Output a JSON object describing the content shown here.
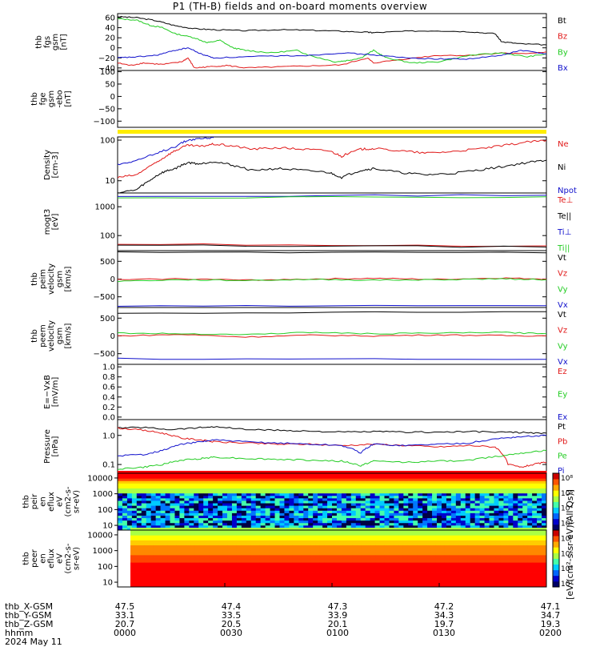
{
  "title": "P1 (TH-B) fields and on-board moments overview",
  "colors": {
    "black": "#000000",
    "red": "#e11919",
    "green": "#22cc22",
    "blue": "#1111cc",
    "yellow": "#ffee00"
  },
  "chart_data": [
    {
      "type": "line",
      "id": "fgs_gsm",
      "ylabel": [
        "thb",
        "fgs",
        "gsm",
        "[nT]"
      ],
      "yticks": [
        "60",
        "40",
        "20",
        "0",
        "−20",
        "−40"
      ],
      "ylim": [
        -45,
        68
      ],
      "legend": [
        {
          "name": "Bt",
          "color": "black"
        },
        {
          "name": "Bz",
          "color": "red"
        },
        {
          "name": "By",
          "color": "green"
        },
        {
          "name": "Bx",
          "color": "blue"
        }
      ],
      "series": [
        {
          "name": "Bt",
          "color": "black",
          "x": [
            0,
            6,
            12,
            18,
            24,
            30,
            40,
            50,
            60,
            70,
            78,
            80,
            90,
            100,
            110,
            118,
            120,
            126,
            134
          ],
          "y": [
            62,
            60,
            54,
            44,
            38,
            36,
            34,
            36,
            35,
            33,
            31,
            30,
            33,
            34,
            32,
            28,
            12,
            8,
            6
          ]
        },
        {
          "name": "Bz",
          "color": "red",
          "x": [
            0,
            4,
            8,
            14,
            20,
            22,
            24,
            28,
            34,
            40,
            50,
            60,
            70,
            78,
            80,
            90,
            100,
            110,
            120,
            126,
            134
          ],
          "y": [
            -30,
            -35,
            -30,
            -33,
            -28,
            -20,
            -40,
            -38,
            -35,
            -40,
            -38,
            -36,
            -34,
            -20,
            -30,
            -22,
            -15,
            -15,
            -10,
            -12,
            -8
          ]
        },
        {
          "name": "By",
          "color": "green",
          "x": [
            0,
            6,
            10,
            14,
            18,
            24,
            28,
            32,
            36,
            40,
            48,
            56,
            60,
            68,
            72,
            76,
            80,
            84,
            92,
            100,
            110,
            120,
            128,
            134
          ],
          "y": [
            58,
            55,
            45,
            40,
            28,
            20,
            10,
            15,
            0,
            -5,
            -10,
            -5,
            -15,
            -28,
            -25,
            -20,
            -5,
            -20,
            -30,
            -28,
            -15,
            -10,
            -18,
            -12
          ]
        },
        {
          "name": "Bx",
          "color": "blue",
          "x": [
            0,
            6,
            12,
            18,
            22,
            26,
            30,
            40,
            50,
            60,
            70,
            80,
            90,
            100,
            110,
            120,
            126,
            134
          ],
          "y": [
            -20,
            -18,
            -15,
            -5,
            0,
            -12,
            -20,
            -18,
            -16,
            -15,
            -10,
            -14,
            -20,
            -22,
            -22,
            -15,
            -5,
            -12
          ]
        }
      ]
    },
    {
      "type": "line",
      "id": "fgs_gsm_ebo",
      "ylabel": [
        "thb",
        "fge",
        "gsm",
        "-ebo",
        "[nT]"
      ],
      "yticks": [
        "100",
        "50",
        "0",
        "−50",
        "−100"
      ],
      "ylim": [
        -125,
        105
      ],
      "series": []
    },
    {
      "type": "flag_bar",
      "id": "mode_bar",
      "color": "yellow"
    },
    {
      "type": "line",
      "id": "density",
      "ylabel": [
        "Density",
        "[cm-3]"
      ],
      "scale": "log",
      "yticks": [
        "100",
        "10"
      ],
      "ylim": [
        5,
        120
      ],
      "legend": [
        {
          "name": "Ne",
          "color": "red"
        },
        {
          "name": "Ni",
          "color": "black"
        },
        {
          "name": "Npot",
          "color": "blue"
        }
      ],
      "series": [
        {
          "name": "Ne",
          "color": "red",
          "x": [
            0,
            6,
            10,
            14,
            18,
            22,
            26,
            30,
            36,
            42,
            50,
            58,
            66,
            70,
            76,
            80,
            88,
            96,
            104,
            112,
            120,
            128,
            134
          ],
          "y": [
            12,
            14,
            22,
            35,
            55,
            75,
            70,
            80,
            72,
            60,
            65,
            60,
            55,
            40,
            60,
            62,
            55,
            48,
            52,
            60,
            72,
            90,
            98
          ]
        },
        {
          "name": "Ni",
          "color": "black",
          "x": [
            0,
            6,
            10,
            14,
            18,
            22,
            26,
            30,
            36,
            42,
            50,
            58,
            66,
            70,
            76,
            80,
            88,
            96,
            104,
            112,
            120,
            128,
            134
          ],
          "y": [
            5,
            6,
            10,
            16,
            20,
            28,
            26,
            30,
            24,
            18,
            20,
            18,
            16,
            12,
            18,
            20,
            16,
            14,
            15,
            18,
            22,
            28,
            32
          ]
        },
        {
          "name": "Npot",
          "color": "blue",
          "x": [
            0,
            6,
            12,
            18,
            22,
            26,
            30
          ],
          "y": [
            25,
            32,
            45,
            70,
            100,
            110,
            115
          ]
        }
      ]
    },
    {
      "type": "line",
      "id": "temperature",
      "ylabel": [
        "mogt3",
        "[eV]"
      ],
      "scale": "log",
      "yticks": [
        "1000",
        "100"
      ],
      "ylim": [
        30,
        3000
      ],
      "legend": [
        {
          "name": "Te⊥",
          "color": "red"
        },
        {
          "name": "Te||",
          "color": "black"
        },
        {
          "name": "Ti⊥",
          "color": "blue"
        },
        {
          "name": "Ti||",
          "color": "green"
        }
      ],
      "series": [
        {
          "name": "Ti⊥",
          "color": "blue",
          "x": [
            0,
            134
          ],
          "y": [
            2400,
            2500
          ]
        },
        {
          "name": "Ti||",
          "color": "green",
          "x": [
            0,
            134
          ],
          "y": [
            2100,
            2200
          ]
        },
        {
          "name": "Te⊥",
          "color": "red",
          "x": [
            0,
            134
          ],
          "y": [
            50,
            44
          ]
        },
        {
          "name": "Te||",
          "color": "black",
          "x": [
            0,
            134
          ],
          "y": [
            46,
            40
          ]
        }
      ]
    },
    {
      "type": "line",
      "id": "peim_velocity",
      "ylabel": [
        "thb",
        "peim",
        "velocity",
        "gsm",
        "[km/s]"
      ],
      "yticks": [
        "500",
        "0",
        "−500"
      ],
      "ylim": [
        -800,
        800
      ],
      "legend": [
        {
          "name": "Vt",
          "color": "black"
        },
        {
          "name": "Vz",
          "color": "red"
        },
        {
          "name": "Vy",
          "color": "green"
        },
        {
          "name": "Vx",
          "color": "blue"
        }
      ],
      "series": [
        {
          "name": "Vt",
          "color": "black",
          "x": [
            0,
            134
          ],
          "y": [
            760,
            740
          ]
        },
        {
          "name": "Vz",
          "color": "red",
          "x": [
            0,
            20,
            40,
            60,
            80,
            100,
            120,
            134
          ],
          "y": [
            -20,
            10,
            -30,
            0,
            20,
            -10,
            30,
            0
          ]
        },
        {
          "name": "Vy",
          "color": "green",
          "x": [
            0,
            20,
            40,
            60,
            80,
            100,
            120,
            134
          ],
          "y": [
            -60,
            -20,
            -40,
            -10,
            -30,
            -20,
            10,
            -20
          ]
        },
        {
          "name": "Vx",
          "color": "blue",
          "x": [
            0,
            134
          ],
          "y": [
            -760,
            -750
          ]
        }
      ]
    },
    {
      "type": "line",
      "id": "peem_velocity",
      "ylabel": [
        "thb",
        "peem",
        "velocity",
        "gsm",
        "[km/s]"
      ],
      "yticks": [
        "500",
        "0",
        "−500"
      ],
      "ylim": [
        -800,
        800
      ],
      "legend": [
        {
          "name": "Vt",
          "color": "black"
        },
        {
          "name": "Vz",
          "color": "red"
        },
        {
          "name": "Vy",
          "color": "green"
        },
        {
          "name": "Vx",
          "color": "blue"
        }
      ],
      "series": [
        {
          "name": "Vt",
          "color": "black",
          "x": [
            0,
            134
          ],
          "y": [
            640,
            680
          ]
        },
        {
          "name": "Vz",
          "color": "red",
          "x": [
            0,
            20,
            40,
            60,
            80,
            100,
            120,
            134
          ],
          "y": [
            0,
            40,
            -30,
            20,
            0,
            30,
            10,
            0
          ]
        },
        {
          "name": "Vy",
          "color": "green",
          "x": [
            0,
            20,
            40,
            60,
            80,
            100,
            120,
            134
          ],
          "y": [
            80,
            60,
            40,
            100,
            60,
            80,
            100,
            60
          ]
        },
        {
          "name": "Vx",
          "color": "blue",
          "x": [
            0,
            134
          ],
          "y": [
            -640,
            -660
          ]
        }
      ]
    },
    {
      "type": "line",
      "id": "efield",
      "ylabel": [
        "E=−VxB",
        "[mV/m]"
      ],
      "yticks": [
        "1.0",
        "0.8",
        "0.6",
        "0.4",
        "0.2",
        "0.0"
      ],
      "ylim": [
        -0.05,
        1.05
      ],
      "legend": [
        {
          "name": "Ez",
          "color": "red"
        },
        {
          "name": "Ey",
          "color": "green"
        },
        {
          "name": "Ex",
          "color": "blue"
        }
      ],
      "series": []
    },
    {
      "type": "line",
      "id": "pressure",
      "ylabel": [
        "Pressure",
        "[nPa]"
      ],
      "scale": "log",
      "yticks": [
        "1.0",
        "0.1"
      ],
      "ylim": [
        0.05,
        3.5
      ],
      "legend": [
        {
          "name": "Pt",
          "color": "black"
        },
        {
          "name": "Pb",
          "color": "red"
        },
        {
          "name": "Pe",
          "color": "green"
        },
        {
          "name": "Pi",
          "color": "blue"
        }
      ],
      "series": [
        {
          "name": "Pt",
          "color": "black",
          "x": [
            0,
            8,
            16,
            24,
            30,
            40,
            50,
            60,
            70,
            80,
            90,
            100,
            110,
            120,
            126,
            134
          ],
          "y": [
            1.8,
            1.9,
            1.6,
            1.8,
            2.0,
            1.6,
            1.5,
            1.4,
            1.3,
            1.35,
            1.3,
            1.3,
            1.35,
            1.3,
            1.25,
            1.2
          ]
        },
        {
          "name": "Pb",
          "color": "red",
          "x": [
            0,
            8,
            14,
            20,
            26,
            30,
            40,
            50,
            60,
            70,
            80,
            90,
            100,
            110,
            118,
            122,
            126,
            130,
            134
          ],
          "y": [
            1.8,
            1.5,
            1.2,
            0.8,
            0.7,
            0.6,
            0.55,
            0.5,
            0.5,
            0.45,
            0.5,
            0.45,
            0.4,
            0.45,
            0.4,
            0.1,
            0.08,
            0.1,
            0.12
          ]
        },
        {
          "name": "Pe",
          "color": "green",
          "x": [
            0,
            8,
            14,
            20,
            26,
            30,
            40,
            50,
            60,
            70,
            76,
            80,
            90,
            100,
            110,
            120,
            126,
            134
          ],
          "y": [
            0.07,
            0.08,
            0.1,
            0.14,
            0.16,
            0.18,
            0.16,
            0.15,
            0.14,
            0.13,
            0.09,
            0.13,
            0.12,
            0.13,
            0.14,
            0.2,
            0.25,
            0.3
          ]
        },
        {
          "name": "Pi",
          "color": "blue",
          "x": [
            0,
            8,
            14,
            20,
            26,
            30,
            40,
            50,
            60,
            70,
            76,
            80,
            90,
            100,
            110,
            120,
            126,
            134
          ],
          "y": [
            0.2,
            0.22,
            0.3,
            0.5,
            0.6,
            0.7,
            0.6,
            0.55,
            0.5,
            0.45,
            0.25,
            0.5,
            0.45,
            0.5,
            0.55,
            0.8,
            0.9,
            1.0
          ]
        }
      ]
    },
    {
      "type": "heatmap",
      "id": "peir_spectrogram",
      "ylabel": [
        "thb",
        "peir",
        "en",
        "eflux",
        "eV",
        "(cm2-s-",
        "sr-eV)"
      ],
      "yticks": [
        "10000",
        "1000",
        "100",
        "10"
      ],
      "scale": "log",
      "ylim": [
        5,
        20000
      ]
    },
    {
      "type": "heatmap",
      "id": "peer_spectrogram",
      "ylabel": [
        "thb",
        "peer",
        "en",
        "eflux",
        "eV",
        "(cm2-s-",
        "sr-eV)"
      ],
      "yticks": [
        "10000",
        "1000",
        "100",
        "10"
      ],
      "scale": "log",
      "ylim": [
        5,
        20000
      ]
    }
  ],
  "colorbar": {
    "ticks": [
      "10⁸",
      "10⁶",
      "10⁴",
      "10²",
      "10⁸",
      "10⁶",
      "10⁴",
      "10²"
    ],
    "label": "[eV/(cm²-s-sr-eV)(All Qs)]"
  },
  "footer": {
    "labels": [
      "thb_X-GSM",
      "thb_Y-GSM",
      "thb_Z-GSM",
      "hhmm",
      "2024 May 11"
    ],
    "columns": [
      [
        "47.5",
        "33.1",
        "20.7",
        "0000"
      ],
      [
        "47.4",
        "33.5",
        "20.5",
        "0030"
      ],
      [
        "47.3",
        "33.9",
        "20.1",
        "0100"
      ],
      [
        "47.2",
        "34.3",
        "19.7",
        "0130"
      ],
      [
        "47.1",
        "34.7",
        "19.3",
        "0200"
      ]
    ]
  }
}
